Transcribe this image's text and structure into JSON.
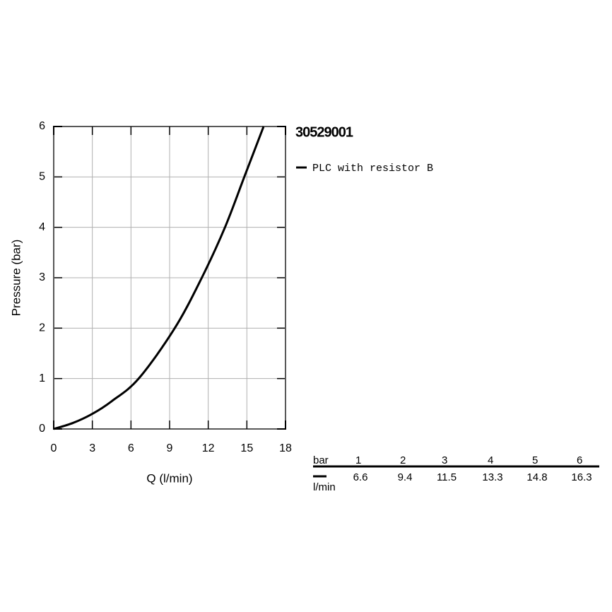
{
  "chart_data": {
    "type": "line",
    "title": "30529001",
    "x_label": "Q (l/min)",
    "y_label": "Pressure (bar)",
    "x": [
      0,
      1.5,
      3,
      4.5,
      6.6,
      9.4,
      11.5,
      13.3,
      14.8,
      16.3
    ],
    "series": [
      {
        "name": "PLC with resistor B",
        "color": "#000000",
        "values": [
          0,
          0.12,
          0.3,
          0.55,
          1,
          2,
          3,
          4,
          5,
          6
        ]
      }
    ],
    "xlim": [
      0,
      18
    ],
    "ylim": [
      0,
      6
    ],
    "xticks": [
      0,
      3,
      6,
      9,
      12,
      15,
      18
    ],
    "yticks": [
      0,
      1,
      2,
      3,
      4,
      5,
      6
    ],
    "grid": true
  },
  "table": {
    "header_label": "bar",
    "columns": [
      1,
      2,
      3,
      4,
      5,
      6
    ],
    "row_label": "l/min",
    "values": [
      6.6,
      9.4,
      11.5,
      13.3,
      14.8,
      16.3
    ]
  }
}
